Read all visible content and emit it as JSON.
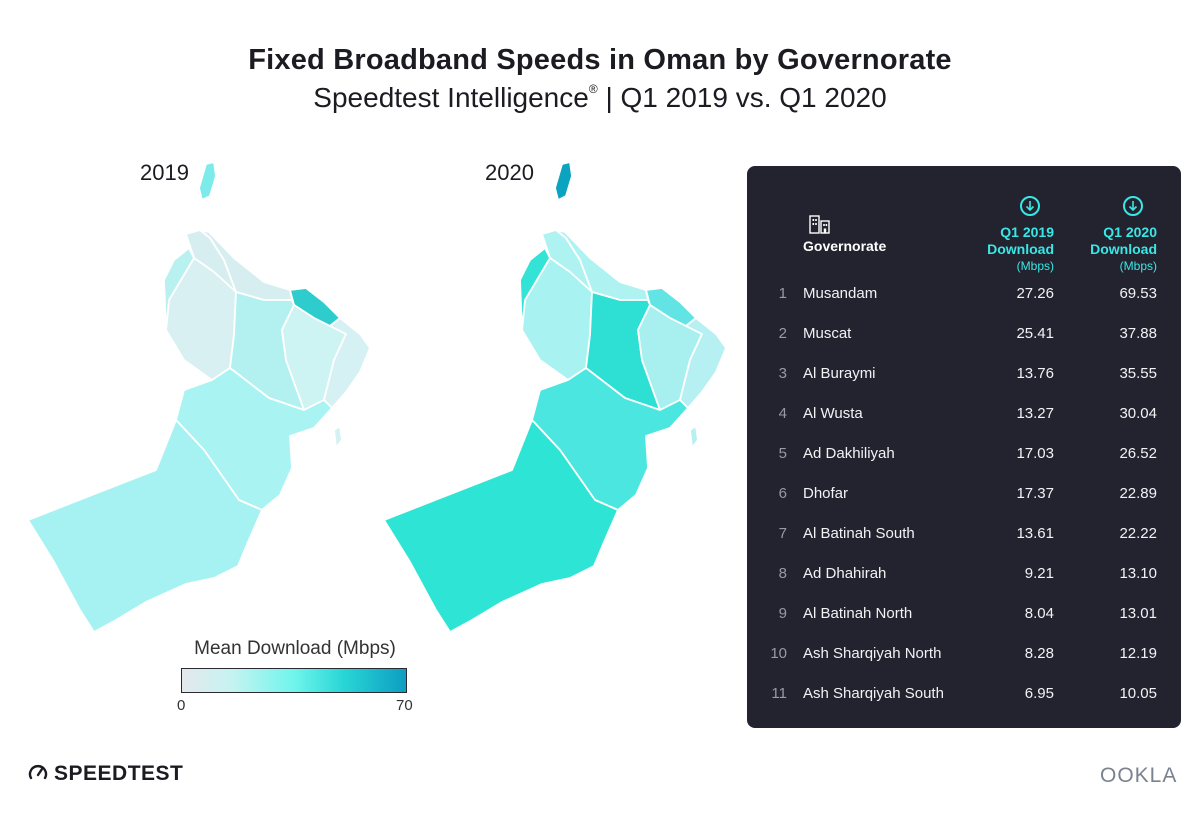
{
  "title": "Fixed Broadband Speeds in Oman by Governorate",
  "subtitle": {
    "left": "Speedtest Intelligence",
    "reg": "®",
    "right": " |  Q1 2019 vs. Q1 2020"
  },
  "maps": [
    {
      "year_label": "2019",
      "fills": {
        "musandam": "#7debea",
        "batinah_north": "#d7eef0",
        "dhahirah": "#d8f0f2",
        "buraymi": "#b9f0f0",
        "dakhiliyah": "#b3f1f1",
        "muscat": "#2fcccd",
        "sharqiyah_north": "#cef3f3",
        "sharqiyah_south": "#d6f1f3",
        "wusta": "#aaf3f3",
        "dhofar": "#a6f2f2"
      }
    },
    {
      "year_label": "2020",
      "fills": {
        "musandam": "#0aa4c0",
        "batinah_north": "#aef2f1",
        "dhahirah": "#a8f2f2",
        "buraymi": "#33e4d6",
        "dakhiliyah": "#2ee0d4",
        "muscat": "#62e4e4",
        "sharqiyah_north": "#a8f0f0",
        "sharqiyah_south": "#b6f0f2",
        "wusta": "#4ce6e0",
        "dhofar": "#2ee4d4"
      }
    }
  ],
  "legend": {
    "title": "Mean Download (Mbps)",
    "min": "0",
    "max": "70",
    "colors": [
      "#e4e8ec",
      "#c6f3f1",
      "#6ff5ec",
      "#29d6d6",
      "#0d9ec2"
    ]
  },
  "table": {
    "header": {
      "governorate": "Governorate",
      "q2019_line1": "Q1 2019",
      "q2019_line2": "Download",
      "q2020_line1": "Q1 2020",
      "q2020_line2": "Download",
      "unit": "(Mbps)"
    },
    "rows": [
      {
        "rank": "1",
        "name": "Musandam",
        "q2019": "27.26",
        "q2020": "69.53"
      },
      {
        "rank": "2",
        "name": "Muscat",
        "q2019": "25.41",
        "q2020": "37.88"
      },
      {
        "rank": "3",
        "name": "Al Buraymi",
        "q2019": "13.76",
        "q2020": "35.55"
      },
      {
        "rank": "4",
        "name": "Al Wusta",
        "q2019": "13.27",
        "q2020": "30.04"
      },
      {
        "rank": "5",
        "name": "Ad Dakhiliyah",
        "q2019": "17.03",
        "q2020": "26.52"
      },
      {
        "rank": "6",
        "name": "Dhofar",
        "q2019": "17.37",
        "q2020": "22.89"
      },
      {
        "rank": "7",
        "name": "Al Batinah South",
        "q2019": "13.61",
        "q2020": "22.22"
      },
      {
        "rank": "8",
        "name": "Ad Dhahirah",
        "q2019": "9.21",
        "q2020": "13.10"
      },
      {
        "rank": "9",
        "name": "Al Batinah North",
        "q2019": "8.04",
        "q2020": "13.01"
      },
      {
        "rank": "10",
        "name": "Ash Sharqiyah North",
        "q2019": "8.28",
        "q2020": "12.19"
      },
      {
        "rank": "11",
        "name": "Ash Sharqiyah South",
        "q2019": "6.95",
        "q2020": "10.05"
      }
    ]
  },
  "panel_color": "#23232f",
  "accent_color": "#37e8e6",
  "brands": {
    "speedtest": "SPEEDTEST",
    "ookla": "OOKLA"
  }
}
